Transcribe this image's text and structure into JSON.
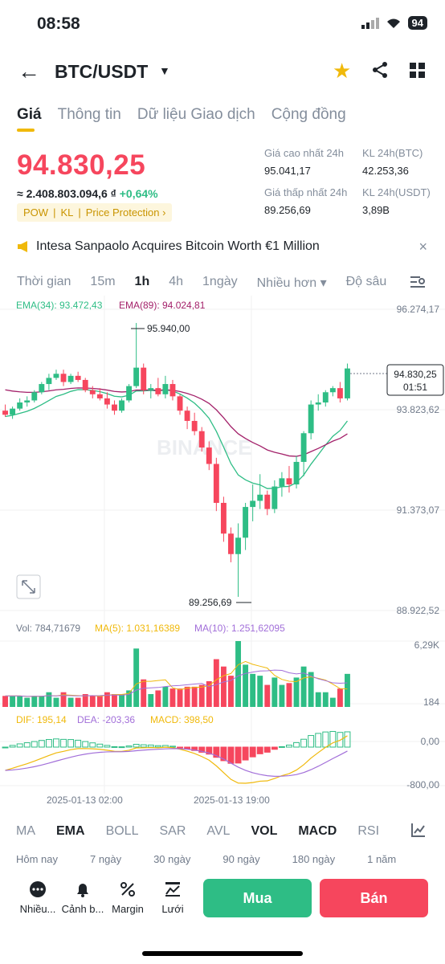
{
  "status": {
    "time": "08:58",
    "battery": "94"
  },
  "header": {
    "pair": "BTC/USDT"
  },
  "tabs": [
    "Giá",
    "Thông tin",
    "Dữ liệu Giao dịch",
    "Cộng đồng"
  ],
  "ticker": {
    "price": "94.830,25",
    "fiat": "≈ 2.408.803.094,6 ₫",
    "change": "+0,64%",
    "badges": [
      "POW",
      "KL",
      "Price Protection ›"
    ],
    "high_label": "Giá cao nhất 24h",
    "high_value": "95.041,17",
    "low_label": "Giá thấp nhất 24h",
    "low_value": "89.256,69",
    "vol_btc_label": "KL 24h(BTC)",
    "vol_btc_value": "42.253,36",
    "vol_usdt_label": "KL 24h(USDT)",
    "vol_usdt_value": "3,89B"
  },
  "news": {
    "text": "Intesa Sanpaolo Acquires Bitcoin Worth €1 Million",
    "close": "×"
  },
  "timeframes": [
    "Thời gian",
    "15m",
    "1h",
    "4h",
    "1ngày",
    "Nhiều hơn ▾",
    "Độ sâu"
  ],
  "chart_data": {
    "type": "candlestick",
    "ema34_label": "EMA(34): 93.472,43",
    "ema89_label": "EMA(89): 94.024,81",
    "y_ticks": [
      "96.274,17",
      "93.823,62",
      "91.373,07",
      "88.922,52"
    ],
    "ylim": [
      88922.52,
      96274.17
    ],
    "high_marker": "95.940,00",
    "low_marker": "89.256,69",
    "last_price_tag": "94.830,25",
    "countdown": "01:51",
    "candles": [
      [
        93800,
        93950,
        93650,
        93700
      ],
      [
        93700,
        93900,
        93600,
        93850
      ],
      [
        93850,
        94100,
        93800,
        94000
      ],
      [
        94000,
        94150,
        93900,
        94050
      ],
      [
        94050,
        94300,
        94000,
        94250
      ],
      [
        94250,
        94500,
        94200,
        94450
      ],
      [
        94450,
        94700,
        94300,
        94600
      ],
      [
        94600,
        94800,
        94550,
        94700
      ],
      [
        94700,
        94800,
        94400,
        94500
      ],
      [
        94500,
        94700,
        94450,
        94650
      ],
      [
        94650,
        94750,
        94500,
        94550
      ],
      [
        94550,
        94600,
        94250,
        94300
      ],
      [
        94300,
        94400,
        94100,
        94200
      ],
      [
        94200,
        94350,
        94050,
        94100
      ],
      [
        94100,
        94250,
        93850,
        93950
      ],
      [
        93950,
        94050,
        93700,
        93800
      ],
      [
        93800,
        94100,
        93750,
        94050
      ],
      [
        94050,
        94450,
        94000,
        94400
      ],
      [
        94400,
        95940,
        94350,
        94850
      ],
      [
        94850,
        94950,
        94200,
        94300
      ],
      [
        94300,
        94450,
        94100,
        94350
      ],
      [
        94350,
        94600,
        94150,
        94200
      ],
      [
        94200,
        94650,
        94100,
        94450
      ],
      [
        94450,
        94550,
        94050,
        94150
      ],
      [
        94150,
        94200,
        93700,
        93800
      ],
      [
        93800,
        93900,
        93350,
        93550
      ],
      [
        93550,
        93750,
        93200,
        93300
      ],
      [
        93300,
        93400,
        92800,
        92900
      ],
      [
        92900,
        93050,
        92350,
        92500
      ],
      [
        92500,
        92650,
        91350,
        91550
      ],
      [
        91550,
        91700,
        90600,
        90800
      ],
      [
        90800,
        90950,
        90100,
        90300
      ],
      [
        90300,
        91050,
        89256.69,
        90700
      ],
      [
        90700,
        91550,
        90400,
        91450
      ],
      [
        91450,
        92000,
        91100,
        91600
      ],
      [
        91600,
        92250,
        91400,
        91750
      ],
      [
        91750,
        91850,
        91250,
        91400
      ],
      [
        91400,
        92100,
        91300,
        91950
      ],
      [
        91950,
        92300,
        91700,
        92150
      ],
      [
        92150,
        92450,
        91800,
        92000
      ],
      [
        92000,
        92700,
        91900,
        92550
      ],
      [
        92550,
        93300,
        92200,
        93250
      ],
      [
        93250,
        94050,
        93100,
        93950
      ],
      [
        93950,
        94200,
        93800,
        94000
      ],
      [
        94000,
        94300,
        93900,
        94250
      ],
      [
        94250,
        94400,
        94150,
        94350
      ],
      [
        94350,
        94500,
        94000,
        94100
      ],
      [
        94100,
        94950,
        94050,
        94830.25
      ]
    ],
    "volume": {
      "label": "Vol: 784,71679",
      "ma5_label": "MA(5): 1.031,16389",
      "ma10_label": "MA(10): 1.251,62095",
      "y_ticks": [
        "6,29K",
        "184"
      ]
    },
    "macd": {
      "dif_label": "DIF: 195,14",
      "dea_label": "DEA: -203,36",
      "macd_label": "MACD: 398,50",
      "y_ticks": [
        "0,00",
        "-800,00"
      ]
    },
    "x_ticks": [
      "2025-01-13 02:00",
      "2025-01-13 19:00"
    ],
    "watermark": "BINANCE"
  },
  "indicators": [
    "MA",
    "EMA",
    "BOLL",
    "SAR",
    "AVL",
    "VOL",
    "MACD",
    "RSI",
    "K"
  ],
  "ranges": [
    "Hôm nay",
    "7 ngày",
    "30 ngày",
    "90 ngày",
    "180 ngày",
    "1 năm"
  ],
  "bottom_nav": [
    "Nhiều...",
    "Cảnh b...",
    "Margin",
    "Lưới"
  ],
  "actions": {
    "buy": "Mua",
    "sell": "Bán"
  },
  "colors": {
    "up": "#2ebd85",
    "down": "#f6465d",
    "accent": "#f0b90b"
  }
}
